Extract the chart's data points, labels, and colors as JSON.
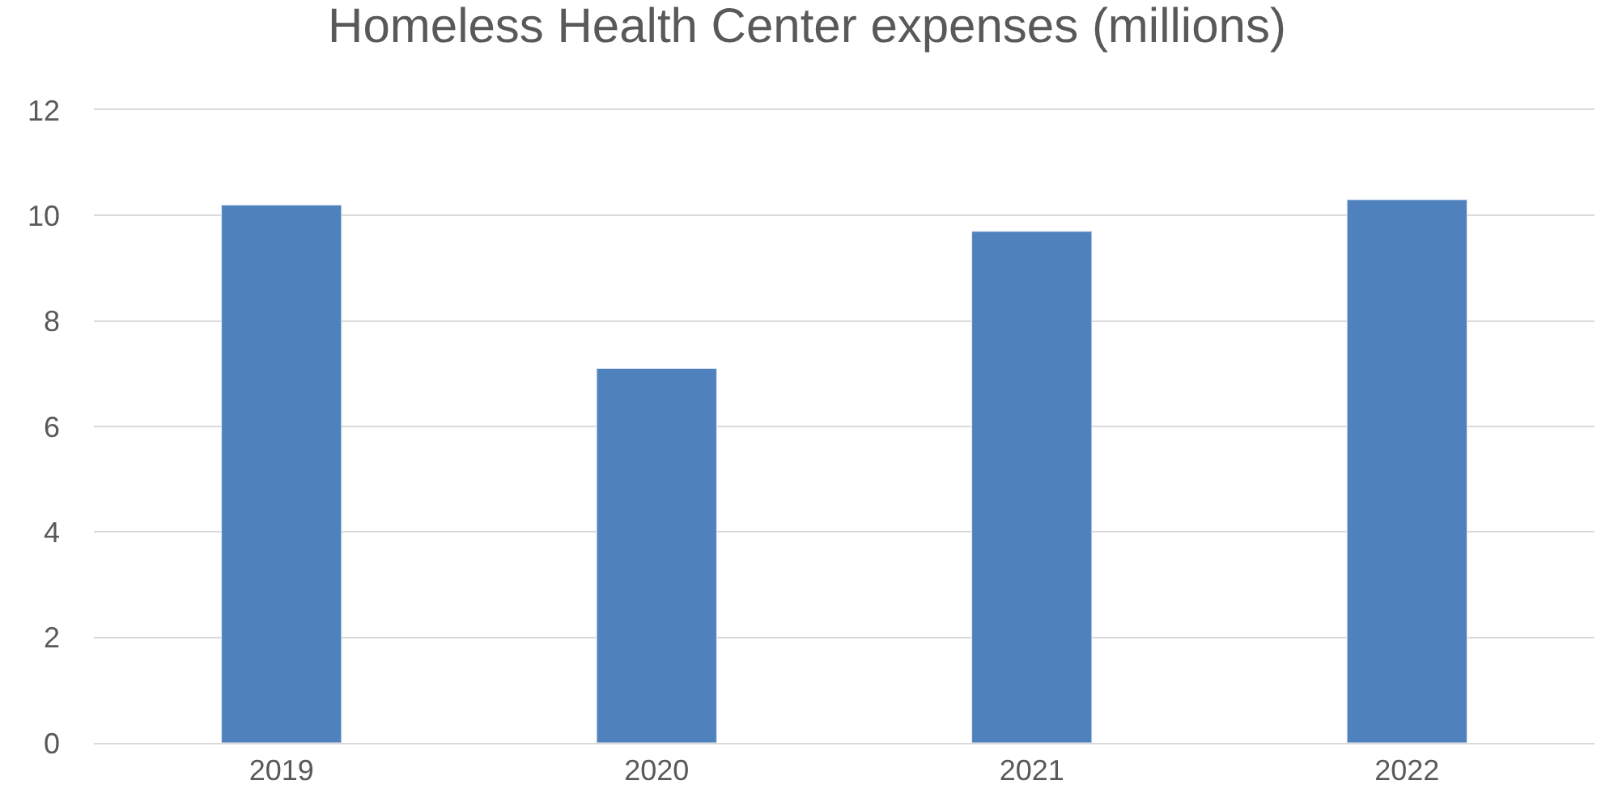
{
  "chart_data": {
    "type": "bar",
    "title": "Homeless Health Center expenses (millions)",
    "categories": [
      "2019",
      "2020",
      "2021",
      "2022"
    ],
    "values": [
      10.2,
      7.1,
      9.7,
      10.3
    ],
    "color": "#4f81bd",
    "ylim": [
      0,
      12
    ],
    "yticks": [
      0,
      2,
      4,
      6,
      8,
      10,
      12
    ],
    "grid": "y"
  }
}
